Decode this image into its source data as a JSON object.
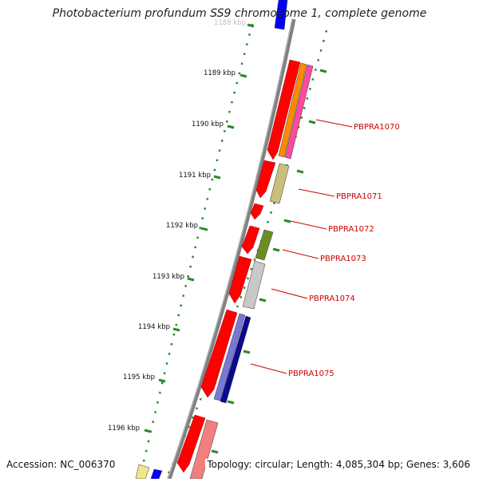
{
  "header": {
    "title": "Photobacterium profundum SS9 chromosome 1, complete genome"
  },
  "footer": {
    "accession": "Accession: NC_006370",
    "summary": "Topology: circular; Length: 4,085,304 bp; Genes: 3,606"
  },
  "scale": {
    "tick_labels": [
      "1188 kbp",
      "1189 kbp",
      "1190 kbp",
      "1191 kbp",
      "1192 kbp",
      "1193 kbp",
      "1194 kbp",
      "1195 kbp",
      "1196 kbp"
    ]
  },
  "genes": [
    {
      "label": "PBPRA1070"
    },
    {
      "label": "PBPRA1071"
    },
    {
      "label": "PBPRA1072"
    },
    {
      "label": "PBPRA1073"
    },
    {
      "label": "PBPRA1074"
    },
    {
      "label": "PBPRA1075"
    }
  ],
  "colors": {
    "backbone": "#808080",
    "gene_red": "#ff0000",
    "label_red": "#cc0000",
    "tick_green": "#1a7a1a",
    "blue": "#0000ff",
    "orange": "#ff8c00",
    "pink": "#ff4aa0",
    "khaki": "#c8c07a",
    "olive": "#6b8e23",
    "silver": "#c8c8c8",
    "slate": "#7a78d6",
    "navy": "#0a0a90",
    "salmon": "#f08080",
    "yellow": "#f0e68c"
  }
}
